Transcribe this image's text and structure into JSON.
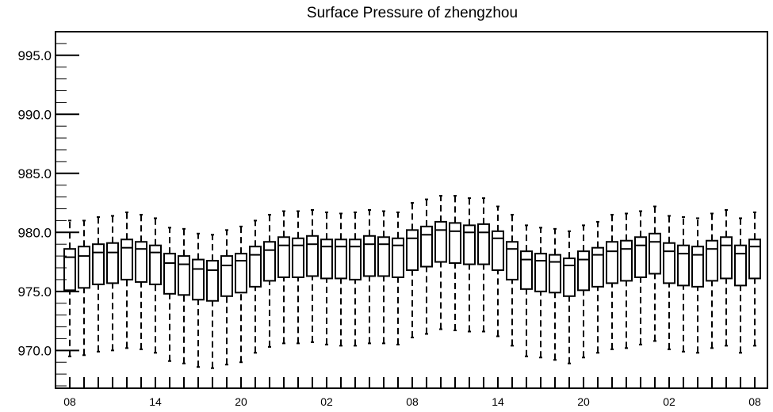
{
  "chart_data": {
    "type": "box",
    "title": "Surface Pressure of zhengzhou",
    "xlabel": "",
    "ylabel": "",
    "ylim": [
      966.8,
      997.0
    ],
    "ytick_values": [
      970.0,
      975.0,
      980.0,
      985.0,
      990.0,
      995.0
    ],
    "ytick_labels": [
      "970.0",
      "975.0",
      "980.0",
      "985.0",
      "990.0",
      "995.0"
    ],
    "xtick_labels": [
      "08",
      "14",
      "20",
      "02",
      "08",
      "14",
      "20",
      "02",
      "08"
    ],
    "xtick_steps": [
      0,
      6,
      12,
      18,
      24,
      30,
      36,
      42,
      48
    ],
    "grid": false,
    "legend": "none",
    "boxes": [
      {
        "step": 0,
        "whislo": 969.5,
        "q1": 975.1,
        "med": 977.9,
        "q3": 978.6,
        "whishi": 981.0
      },
      {
        "step": 1,
        "whislo": 969.6,
        "q1": 975.3,
        "med": 978.0,
        "q3": 978.8,
        "whishi": 981.0
      },
      {
        "step": 2,
        "whislo": 969.9,
        "q1": 975.6,
        "med": 978.3,
        "q3": 979.0,
        "whishi": 981.3
      },
      {
        "step": 3,
        "whislo": 970.0,
        "q1": 975.7,
        "med": 978.3,
        "q3": 979.1,
        "whishi": 981.4
      },
      {
        "step": 4,
        "whislo": 970.2,
        "q1": 976.0,
        "med": 978.7,
        "q3": 979.4,
        "whishi": 981.7
      },
      {
        "step": 5,
        "whislo": 970.1,
        "q1": 975.8,
        "med": 978.6,
        "q3": 979.2,
        "whishi": 981.5
      },
      {
        "step": 6,
        "whislo": 969.8,
        "q1": 975.6,
        "med": 978.3,
        "q3": 978.9,
        "whishi": 981.2
      },
      {
        "step": 7,
        "whislo": 969.1,
        "q1": 974.8,
        "med": 977.4,
        "q3": 978.2,
        "whishi": 980.4
      },
      {
        "step": 8,
        "whislo": 968.9,
        "q1": 974.7,
        "med": 977.3,
        "q3": 978.0,
        "whishi": 980.3
      },
      {
        "step": 9,
        "whislo": 968.6,
        "q1": 974.3,
        "med": 976.9,
        "q3": 977.7,
        "whishi": 979.9
      },
      {
        "step": 10,
        "whislo": 968.5,
        "q1": 974.2,
        "med": 976.8,
        "q3": 977.6,
        "whishi": 979.8
      },
      {
        "step": 11,
        "whislo": 968.8,
        "q1": 974.6,
        "med": 977.2,
        "q3": 978.0,
        "whishi": 980.2
      },
      {
        "step": 12,
        "whislo": 969.0,
        "q1": 974.9,
        "med": 977.6,
        "q3": 978.2,
        "whishi": 980.5
      },
      {
        "step": 13,
        "whislo": 969.8,
        "q1": 975.4,
        "med": 978.1,
        "q3": 978.8,
        "whishi": 981.0
      },
      {
        "step": 14,
        "whislo": 970.3,
        "q1": 975.9,
        "med": 978.5,
        "q3": 979.2,
        "whishi": 981.5
      },
      {
        "step": 15,
        "whislo": 970.6,
        "q1": 976.2,
        "med": 978.9,
        "q3": 979.6,
        "whishi": 981.8
      },
      {
        "step": 16,
        "whislo": 970.6,
        "q1": 976.2,
        "med": 978.9,
        "q3": 979.5,
        "whishi": 981.8
      },
      {
        "step": 17,
        "whislo": 970.7,
        "q1": 976.3,
        "med": 979.0,
        "q3": 979.7,
        "whishi": 981.9
      },
      {
        "step": 18,
        "whislo": 970.5,
        "q1": 976.1,
        "med": 978.8,
        "q3": 979.4,
        "whishi": 981.7
      },
      {
        "step": 19,
        "whislo": 970.4,
        "q1": 976.1,
        "med": 978.8,
        "q3": 979.4,
        "whishi": 981.6
      },
      {
        "step": 20,
        "whislo": 970.4,
        "q1": 976.0,
        "med": 978.8,
        "q3": 979.4,
        "whishi": 981.7
      },
      {
        "step": 21,
        "whislo": 970.6,
        "q1": 976.3,
        "med": 979.0,
        "q3": 979.7,
        "whishi": 981.9
      },
      {
        "step": 22,
        "whislo": 970.6,
        "q1": 976.3,
        "med": 979.0,
        "q3": 979.6,
        "whishi": 981.8
      },
      {
        "step": 23,
        "whislo": 970.5,
        "q1": 976.2,
        "med": 978.9,
        "q3": 979.5,
        "whishi": 981.7
      },
      {
        "step": 24,
        "whislo": 971.1,
        "q1": 976.8,
        "med": 979.5,
        "q3": 980.2,
        "whishi": 982.5
      },
      {
        "step": 25,
        "whislo": 971.4,
        "q1": 977.1,
        "med": 979.8,
        "q3": 980.5,
        "whishi": 982.8
      },
      {
        "step": 26,
        "whislo": 971.8,
        "q1": 977.5,
        "med": 980.2,
        "q3": 980.9,
        "whishi": 983.1
      },
      {
        "step": 27,
        "whislo": 971.7,
        "q1": 977.4,
        "med": 980.1,
        "q3": 980.8,
        "whishi": 983.1
      },
      {
        "step": 28,
        "whislo": 971.6,
        "q1": 977.3,
        "med": 980.0,
        "q3": 980.6,
        "whishi": 982.9
      },
      {
        "step": 29,
        "whislo": 971.6,
        "q1": 977.3,
        "med": 980.0,
        "q3": 980.7,
        "whishi": 982.9
      },
      {
        "step": 30,
        "whislo": 971.2,
        "q1": 976.8,
        "med": 979.5,
        "q3": 980.1,
        "whishi": 982.2
      },
      {
        "step": 31,
        "whislo": 970.4,
        "q1": 976.0,
        "med": 978.6,
        "q3": 979.2,
        "whishi": 981.5
      },
      {
        "step": 32,
        "whislo": 969.5,
        "q1": 975.2,
        "med": 977.7,
        "q3": 978.4,
        "whishi": 980.6
      },
      {
        "step": 33,
        "whislo": 969.4,
        "q1": 975.0,
        "med": 977.6,
        "q3": 978.2,
        "whishi": 980.4
      },
      {
        "step": 34,
        "whislo": 969.2,
        "q1": 974.9,
        "med": 977.5,
        "q3": 978.1,
        "whishi": 980.3
      },
      {
        "step": 35,
        "whislo": 968.9,
        "q1": 974.6,
        "med": 977.2,
        "q3": 977.8,
        "whishi": 980.1
      },
      {
        "step": 36,
        "whislo": 969.4,
        "q1": 975.1,
        "med": 977.7,
        "q3": 978.4,
        "whishi": 980.6
      },
      {
        "step": 37,
        "whislo": 969.8,
        "q1": 975.4,
        "med": 978.1,
        "q3": 978.7,
        "whishi": 980.9
      },
      {
        "step": 38,
        "whislo": 970.1,
        "q1": 975.7,
        "med": 978.4,
        "q3": 979.2,
        "whishi": 981.5
      },
      {
        "step": 39,
        "whislo": 970.2,
        "q1": 975.9,
        "med": 978.6,
        "q3": 979.3,
        "whishi": 981.6
      },
      {
        "step": 40,
        "whislo": 970.5,
        "q1": 976.2,
        "med": 978.9,
        "q3": 979.6,
        "whishi": 981.8
      },
      {
        "step": 41,
        "whislo": 970.8,
        "q1": 976.5,
        "med": 979.2,
        "q3": 979.9,
        "whishi": 982.2
      },
      {
        "step": 42,
        "whislo": 970.1,
        "q1": 975.7,
        "med": 978.4,
        "q3": 979.1,
        "whishi": 981.4
      },
      {
        "step": 43,
        "whislo": 969.9,
        "q1": 975.5,
        "med": 978.2,
        "q3": 978.9,
        "whishi": 981.3
      },
      {
        "step": 44,
        "whislo": 969.8,
        "q1": 975.4,
        "med": 978.1,
        "q3": 978.8,
        "whishi": 981.2
      },
      {
        "step": 45,
        "whislo": 970.2,
        "q1": 975.9,
        "med": 978.6,
        "q3": 979.3,
        "whishi": 981.6
      },
      {
        "step": 46,
        "whislo": 970.4,
        "q1": 976.1,
        "med": 978.9,
        "q3": 979.6,
        "whishi": 981.9
      },
      {
        "step": 47,
        "whislo": 969.8,
        "q1": 975.5,
        "med": 978.2,
        "q3": 978.9,
        "whishi": 981.2
      },
      {
        "step": 48,
        "whislo": 970.4,
        "q1": 976.1,
        "med": 978.8,
        "q3": 979.4,
        "whishi": 981.7
      }
    ]
  }
}
